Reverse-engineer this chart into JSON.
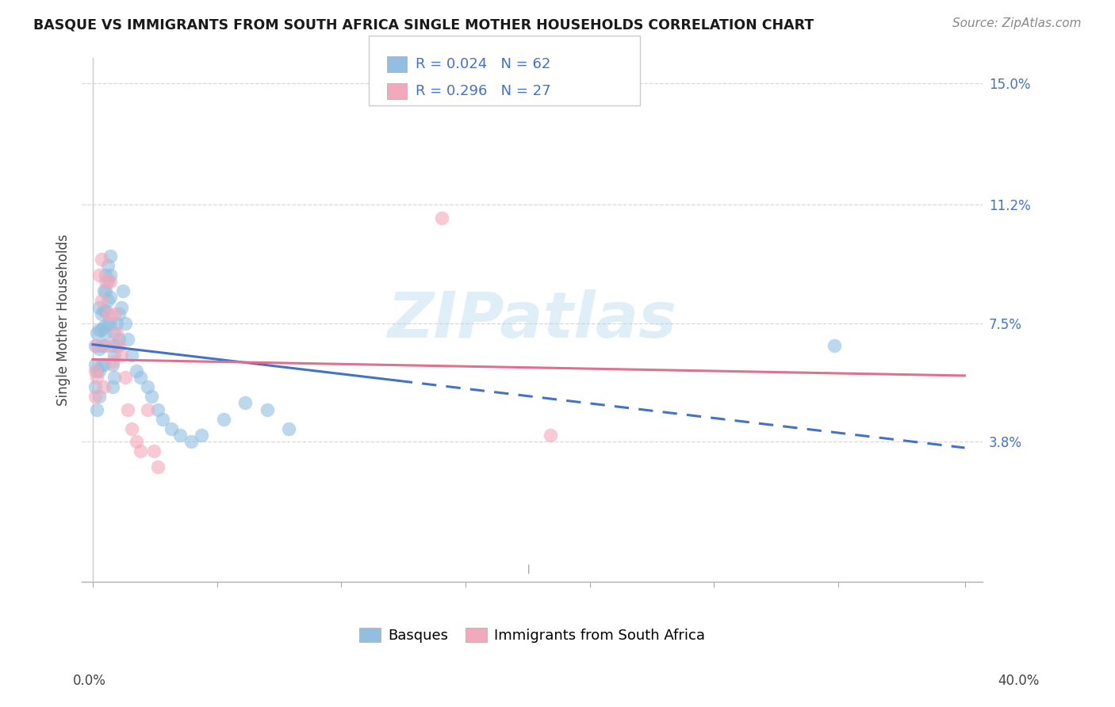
{
  "title": "BASQUE VS IMMIGRANTS FROM SOUTH AFRICA SINGLE MOTHER HOUSEHOLDS CORRELATION CHART",
  "source": "Source: ZipAtlas.com",
  "ylabel": "Single Mother Households",
  "xlim": [
    0.0,
    0.4
  ],
  "ylim": [
    0.0,
    0.155
  ],
  "ytick_vals": [
    0.0,
    0.038,
    0.075,
    0.112,
    0.15
  ],
  "ytick_labels": [
    "",
    "3.8%",
    "7.5%",
    "11.2%",
    "15.0%"
  ],
  "xtick_vals": [
    0.0,
    0.057,
    0.114,
    0.171,
    0.228,
    0.285,
    0.342,
    0.4
  ],
  "watermark": "ZIPatlas",
  "blue_color": "#92bfe0",
  "pink_color": "#f4a8bc",
  "blue_line_color": "#4472c4",
  "pink_line_color": "#e07090",
  "grid_color": "#d8d8d8",
  "background_color": "#ffffff",
  "legend_box_color": "#ffffff",
  "legend_border_color": "#cccccc",
  "r_blue": "0.024",
  "n_blue": "62",
  "r_pink": "0.296",
  "n_pink": "27",
  "blue_line_solid_end": 0.14,
  "title_fontsize": 12.5,
  "source_fontsize": 11,
  "tick_label_fontsize": 12,
  "legend_fontsize": 13,
  "ylabel_fontsize": 12,
  "scatter_size": 160,
  "scatter_alpha": 0.6,
  "basque_x": [
    0.001,
    0.001,
    0.001,
    0.002,
    0.002,
    0.002,
    0.003,
    0.003,
    0.003,
    0.003,
    0.003,
    0.004,
    0.004,
    0.004,
    0.004,
    0.005,
    0.005,
    0.005,
    0.005,
    0.005,
    0.006,
    0.006,
    0.006,
    0.006,
    0.007,
    0.007,
    0.007,
    0.007,
    0.008,
    0.008,
    0.008,
    0.008,
    0.009,
    0.009,
    0.009,
    0.01,
    0.01,
    0.01,
    0.011,
    0.011,
    0.012,
    0.012,
    0.013,
    0.014,
    0.015,
    0.016,
    0.018,
    0.02,
    0.022,
    0.025,
    0.027,
    0.03,
    0.032,
    0.036,
    0.04,
    0.045,
    0.05,
    0.06,
    0.07,
    0.08,
    0.09,
    0.34
  ],
  "basque_y": [
    0.068,
    0.062,
    0.055,
    0.06,
    0.048,
    0.072,
    0.08,
    0.073,
    0.067,
    0.06,
    0.052,
    0.078,
    0.073,
    0.068,
    0.062,
    0.085,
    0.079,
    0.074,
    0.068,
    0.062,
    0.09,
    0.085,
    0.079,
    0.072,
    0.093,
    0.088,
    0.082,
    0.075,
    0.096,
    0.09,
    0.083,
    0.075,
    0.068,
    0.062,
    0.055,
    0.072,
    0.065,
    0.058,
    0.075,
    0.068,
    0.078,
    0.07,
    0.08,
    0.085,
    0.075,
    0.07,
    0.065,
    0.06,
    0.058,
    0.055,
    0.052,
    0.048,
    0.045,
    0.042,
    0.04,
    0.038,
    0.04,
    0.045,
    0.05,
    0.048,
    0.042,
    0.068
  ],
  "sa_x": [
    0.001,
    0.001,
    0.002,
    0.002,
    0.003,
    0.004,
    0.004,
    0.005,
    0.006,
    0.007,
    0.007,
    0.008,
    0.009,
    0.01,
    0.011,
    0.012,
    0.013,
    0.015,
    0.016,
    0.018,
    0.02,
    0.022,
    0.025,
    0.028,
    0.03,
    0.16,
    0.21
  ],
  "sa_y": [
    0.06,
    0.052,
    0.068,
    0.058,
    0.09,
    0.095,
    0.082,
    0.055,
    0.088,
    0.078,
    0.068,
    0.088,
    0.063,
    0.078,
    0.072,
    0.068,
    0.065,
    0.058,
    0.048,
    0.042,
    0.038,
    0.035,
    0.048,
    0.035,
    0.03,
    0.108,
    0.04
  ]
}
